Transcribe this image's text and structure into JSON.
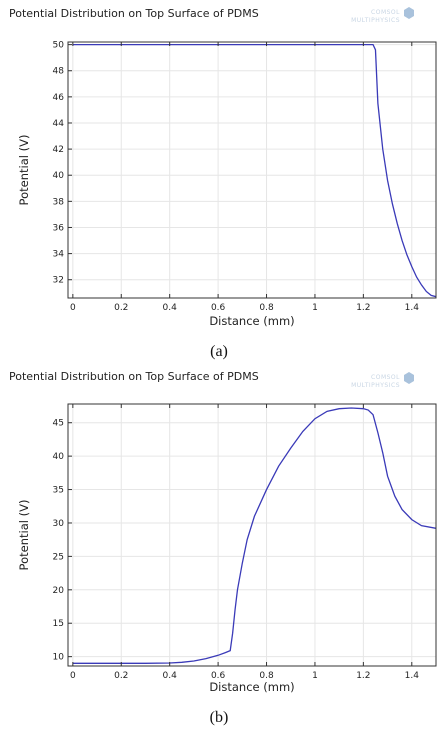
{
  "chart_data": [
    {
      "type": "line",
      "title": "Potential Distribution on Top Surface of PDMS",
      "xlabel": "Distance (mm)",
      "ylabel": "Potential (V)",
      "xlim": [
        -0.02,
        1.5
      ],
      "ylim": [
        30.6,
        50.2
      ],
      "xticks": [
        0,
        0.2,
        0.4,
        0.6,
        0.8,
        1,
        1.2,
        1.4
      ],
      "xtick_labels": [
        "0",
        "0.2",
        "0.4",
        "0.6",
        "0.8",
        "1",
        "1.2",
        "1.4"
      ],
      "yticks": [
        32,
        34,
        36,
        38,
        40,
        42,
        44,
        46,
        48,
        50
      ],
      "ytick_labels": [
        "32",
        "34",
        "36",
        "38",
        "40",
        "42",
        "44",
        "46",
        "48",
        "50"
      ],
      "grid": true,
      "caption": "(a)",
      "color": "#3a3ab8",
      "logo": [
        "COMSOL",
        "MULTIPHYSICS"
      ],
      "series": [
        {
          "x": [
            0,
            0.2,
            0.4,
            0.6,
            0.8,
            1.0,
            1.2,
            1.24,
            1.25,
            1.26,
            1.28,
            1.3,
            1.32,
            1.34,
            1.36,
            1.38,
            1.4,
            1.42,
            1.44,
            1.46,
            1.48,
            1.5
          ],
          "y": [
            50,
            50,
            50,
            50,
            50,
            50,
            50,
            50,
            49.6,
            45.5,
            42.0,
            39.6,
            37.8,
            36.3,
            35.0,
            33.9,
            33.0,
            32.2,
            31.6,
            31.1,
            30.8,
            30.7
          ]
        }
      ]
    },
    {
      "type": "line",
      "title": "Potential Distribution on Top Surface of PDMS",
      "xlabel": "Distance (mm)",
      "ylabel": "Potential (V)",
      "xlim": [
        -0.02,
        1.5
      ],
      "ylim": [
        8.6,
        47.8
      ],
      "xticks": [
        0,
        0.2,
        0.4,
        0.6,
        0.8,
        1,
        1.2,
        1.4
      ],
      "xtick_labels": [
        "0",
        "0.2",
        "0.4",
        "0.6",
        "0.8",
        "1",
        "1.2",
        "1.4"
      ],
      "yticks": [
        10,
        15,
        20,
        25,
        30,
        35,
        40,
        45
      ],
      "ytick_labels": [
        "10",
        "15",
        "20",
        "25",
        "30",
        "35",
        "40",
        "45"
      ],
      "grid": true,
      "caption": "(b)",
      "color": "#3a3ab8",
      "logo": [
        "COMSOL",
        "MULTIPHYSICS"
      ],
      "series": [
        {
          "x": [
            0,
            0.1,
            0.2,
            0.3,
            0.4,
            0.45,
            0.5,
            0.55,
            0.6,
            0.63,
            0.65,
            0.66,
            0.67,
            0.68,
            0.7,
            0.72,
            0.75,
            0.8,
            0.85,
            0.9,
            0.95,
            1.0,
            1.05,
            1.1,
            1.15,
            1.2,
            1.22,
            1.24,
            1.26,
            1.28,
            1.3,
            1.33,
            1.36,
            1.4,
            1.44,
            1.5
          ],
          "y": [
            9.0,
            9.0,
            9.0,
            9.0,
            9.05,
            9.15,
            9.35,
            9.7,
            10.2,
            10.6,
            10.9,
            13.5,
            17.0,
            20.0,
            24.0,
            27.5,
            31.0,
            35.0,
            38.5,
            41.2,
            43.7,
            45.6,
            46.7,
            47.1,
            47.2,
            47.1,
            46.9,
            46.2,
            43.5,
            40.5,
            37.0,
            34.0,
            32.0,
            30.5,
            29.6,
            29.2
          ]
        }
      ]
    }
  ]
}
